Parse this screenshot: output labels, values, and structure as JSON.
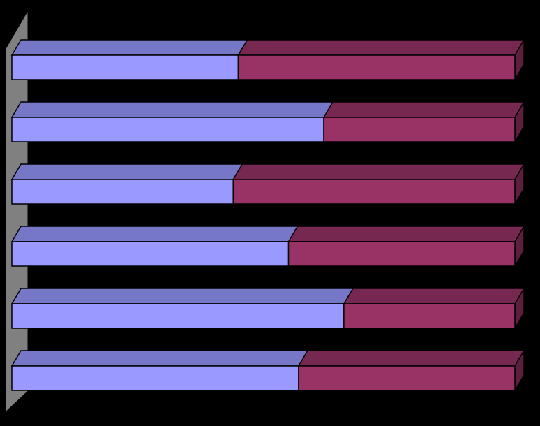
{
  "chart_data": {
    "type": "bar",
    "orientation": "horizontal",
    "stacked": true,
    "categories": [
      null,
      null,
      null,
      null,
      null,
      null
    ],
    "xlim": [
      0,
      100
    ],
    "series": [
      {
        "color": "#9999ff",
        "values": [
          45,
          62,
          44,
          55,
          66,
          57
        ]
      },
      {
        "color": "#993366",
        "values": [
          55,
          38,
          56,
          45,
          34,
          43
        ]
      }
    ]
  }
}
